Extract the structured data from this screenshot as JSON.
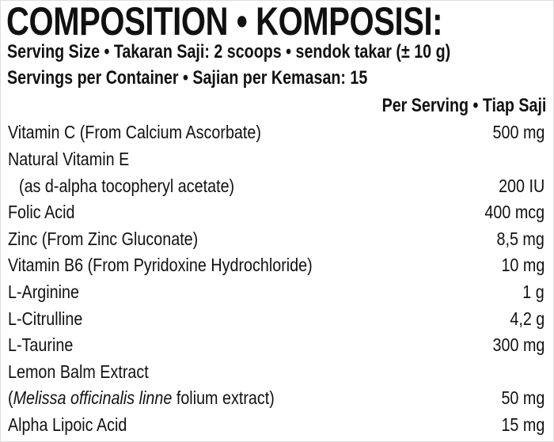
{
  "title": "COMPOSITION • KOMPOSISI:",
  "serving_size": "Serving Size • Takaran Saji: 2 scoops • sendok takar (± 10 g)",
  "servings_per_container": "Servings per Container • Sajian per Kemasan: 15",
  "column_header": "Per Serving • Tiap Saji",
  "rows": [
    {
      "name": "Vitamin C (From Calcium Ascorbate)",
      "amount": "500 mg"
    },
    {
      "name": "Natural Vitamin E",
      "amount": ""
    },
    {
      "name": "(as d-alpha tocopheryl acetate)",
      "amount": "200 IU"
    },
    {
      "name": "Folic Acid",
      "amount": "400 mcg"
    },
    {
      "name": "Zinc (From Zinc Gluconate)",
      "amount": "8,5 mg"
    },
    {
      "name": "Vitamin B6 (From Pyridoxine Hydrochloride)",
      "amount": "10 mg"
    },
    {
      "name": "L-Arginine",
      "amount": "1 g"
    },
    {
      "name": "L-Citrulline",
      "amount": "4,2 g"
    },
    {
      "name": "L-Taurine",
      "amount": "300 mg"
    },
    {
      "name": "Lemon Balm Extract",
      "amount": ""
    },
    {
      "name_prefix": "(",
      "name_italic": "Melissa officinalis linne",
      "name_suffix": " folium extract)",
      "amount": "50 mg"
    },
    {
      "name": "Alpha Lipoic Acid",
      "amount": "15 mg"
    }
  ]
}
